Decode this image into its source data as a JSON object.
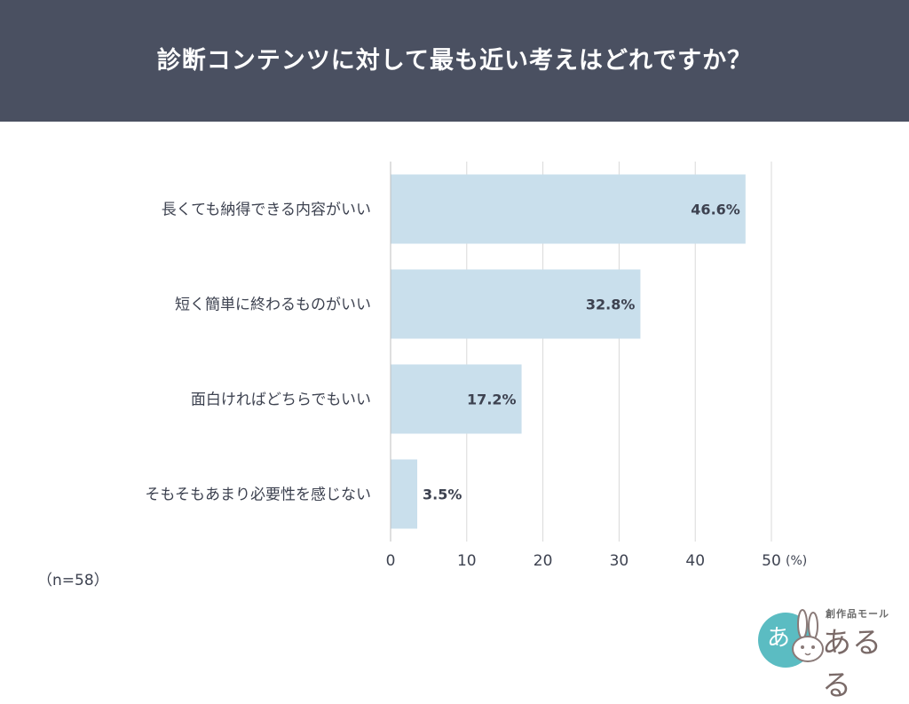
{
  "header": {
    "title": "診断コンテンツに対して最も近い考えはどれですか？"
  },
  "sample": {
    "label": "（n=58）"
  },
  "logo": {
    "sub_text": "創作品モール",
    "main_text": "あるる"
  },
  "colors": {
    "bar": "#c9dfec",
    "header_bg": "#4a5061",
    "text": "#3d4250",
    "grid": "#d9d9d9"
  },
  "chart_data": {
    "type": "bar",
    "orientation": "horizontal",
    "title": "診断コンテンツに対して最も近い考えはどれですか？",
    "categories": [
      "長くても納得できる内容がいい",
      "短く簡単に終わるものがいい",
      "面白ければどちらでもいい",
      "そもそもあまり必要性を感じない"
    ],
    "values": [
      46.6,
      32.8,
      17.2,
      3.5
    ],
    "value_labels": [
      "46.6%",
      "32.8%",
      "17.2%",
      "3.5%"
    ],
    "xlim": [
      0,
      50
    ],
    "xticks": [
      "0",
      "10",
      "20",
      "30",
      "40",
      "50"
    ],
    "x_unit": "(%)",
    "grid": true
  }
}
